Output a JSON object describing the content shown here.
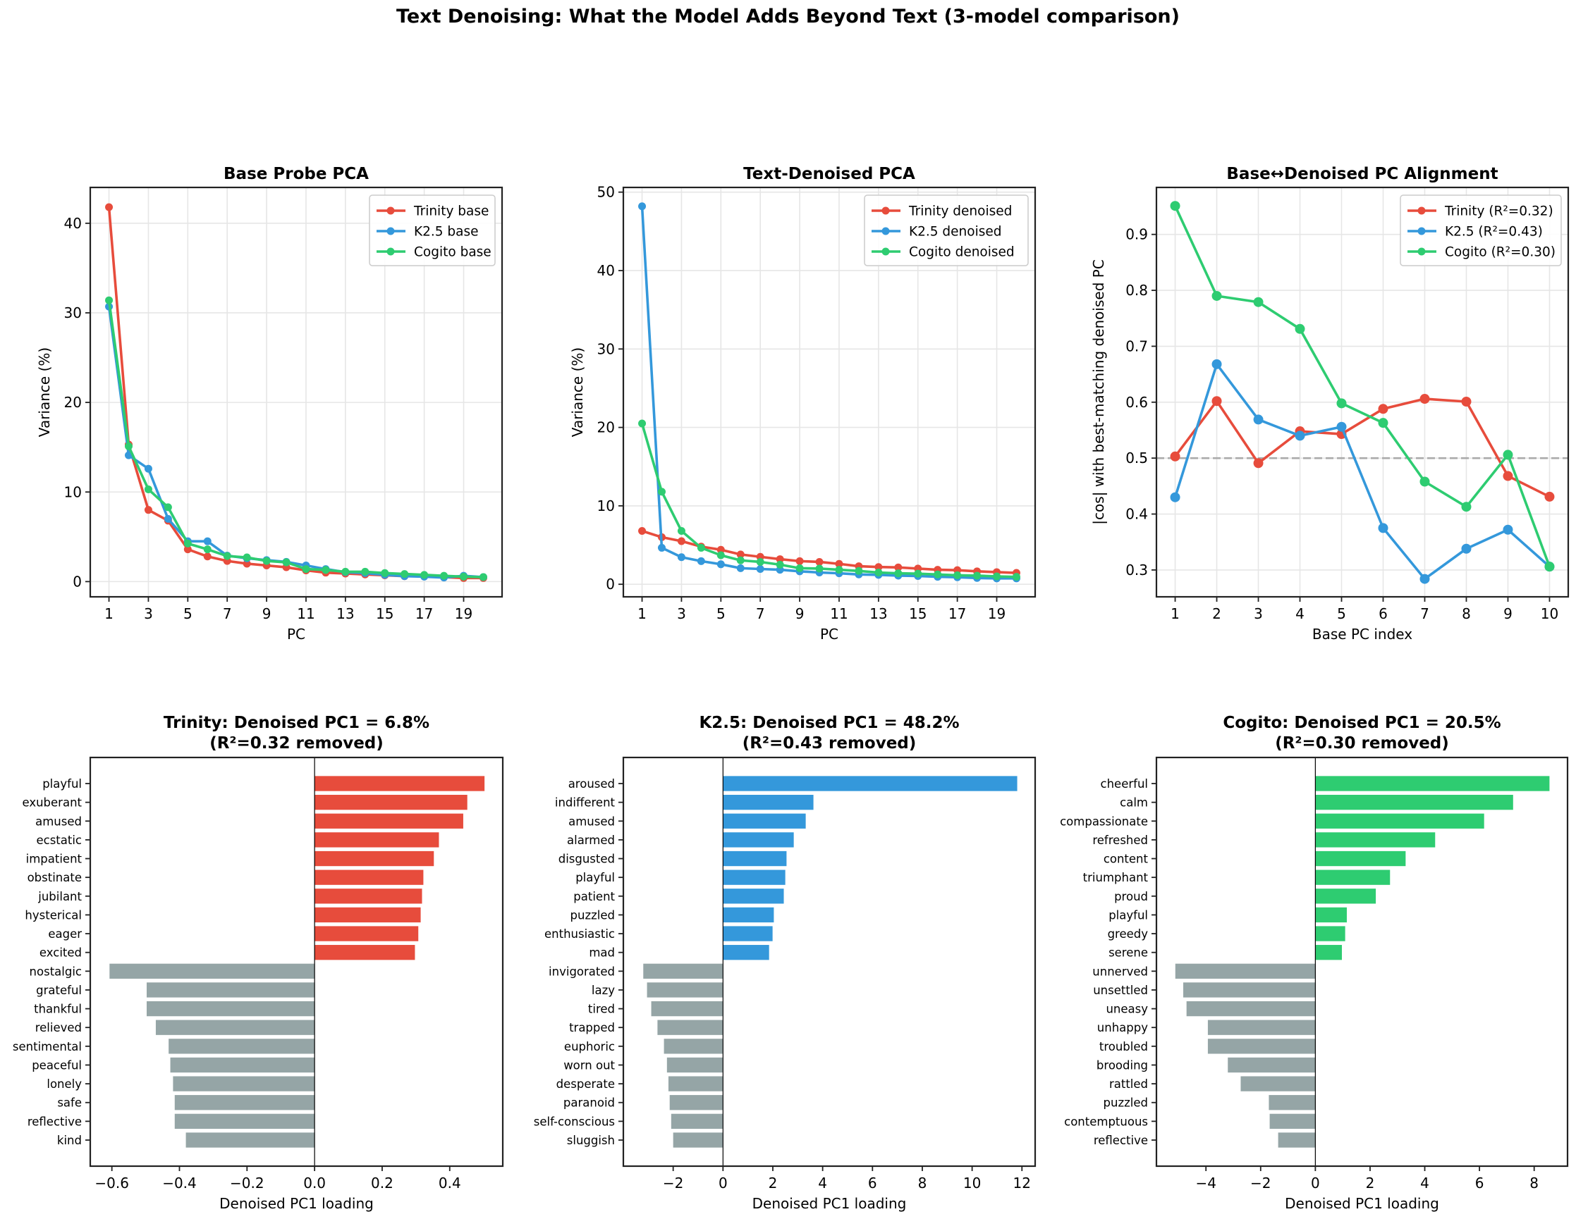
{
  "figure": {
    "title": "Text Denoising: What the Model Adds Beyond Text (3-model comparison)"
  },
  "colors": {
    "trinity": "#e74c3c",
    "k25": "#3498db",
    "cogito": "#2ecc71",
    "negative_bar": "#95a5a6",
    "grid": "#e6e6e6",
    "reference_line": "#aaaaaa"
  },
  "chart_data": [
    {
      "id": "base-probe-pca",
      "type": "line",
      "title": "Base Probe PCA",
      "xlabel": "PC",
      "ylabel": "Variance (%)",
      "x": [
        1,
        2,
        3,
        4,
        5,
        6,
        7,
        8,
        9,
        10,
        11,
        12,
        13,
        14,
        15,
        16,
        17,
        18,
        19,
        20
      ],
      "xticks": [
        1,
        3,
        5,
        7,
        9,
        11,
        13,
        15,
        17,
        19
      ],
      "yticks": [
        0,
        10,
        20,
        30,
        40
      ],
      "xlim": [
        0.05,
        20.95
      ],
      "ylim": [
        -1.7,
        44.0
      ],
      "grid": true,
      "legend": "top-right",
      "series": [
        {
          "name": "Trinity base",
          "color_key": "trinity",
          "values": [
            41.8,
            15.3,
            8.0,
            6.8,
            3.6,
            2.8,
            2.3,
            2.0,
            1.8,
            1.6,
            1.25,
            1.0,
            0.9,
            0.8,
            0.7,
            0.6,
            0.6,
            0.5,
            0.4,
            0.4
          ]
        },
        {
          "name": "K2.5 base",
          "color_key": "k25",
          "values": [
            30.7,
            14.1,
            12.6,
            7.0,
            4.5,
            4.5,
            2.9,
            2.6,
            2.4,
            2.2,
            1.8,
            1.4,
            1.05,
            0.95,
            0.75,
            0.6,
            0.55,
            0.45,
            0.65,
            0.5
          ]
        },
        {
          "name": "Cogito base",
          "color_key": "cogito",
          "values": [
            31.4,
            15.1,
            10.3,
            8.3,
            4.25,
            3.6,
            2.85,
            2.7,
            2.3,
            2.15,
            1.4,
            1.3,
            1.1,
            1.1,
            0.95,
            0.85,
            0.75,
            0.65,
            0.55,
            0.5
          ]
        }
      ]
    },
    {
      "id": "text-denoised-pca",
      "type": "line",
      "title": "Text-Denoised PCA",
      "xlabel": "PC",
      "ylabel": "Variance (%)",
      "x": [
        1,
        2,
        3,
        4,
        5,
        6,
        7,
        8,
        9,
        10,
        11,
        12,
        13,
        14,
        15,
        16,
        17,
        18,
        19,
        20
      ],
      "xticks": [
        1,
        3,
        5,
        7,
        9,
        11,
        13,
        15,
        17,
        19
      ],
      "yticks": [
        0,
        10,
        20,
        30,
        40,
        50
      ],
      "xlim": [
        0.05,
        20.95
      ],
      "ylim": [
        -1.6,
        50.6
      ],
      "grid": true,
      "legend": "top-right",
      "series": [
        {
          "name": "Trinity denoised",
          "color_key": "trinity",
          "values": [
            6.8,
            6.0,
            5.5,
            4.8,
            4.4,
            3.8,
            3.5,
            3.2,
            2.95,
            2.85,
            2.6,
            2.3,
            2.2,
            2.15,
            2.0,
            1.85,
            1.8,
            1.65,
            1.55,
            1.45
          ]
        },
        {
          "name": "K2.5 denoised",
          "color_key": "k25",
          "values": [
            48.2,
            4.65,
            3.45,
            2.95,
            2.55,
            2.05,
            1.95,
            1.85,
            1.65,
            1.5,
            1.4,
            1.25,
            1.2,
            1.1,
            1.05,
            0.95,
            0.9,
            0.8,
            0.75,
            0.75
          ]
        },
        {
          "name": "Cogito denoised",
          "color_key": "cogito",
          "values": [
            20.5,
            11.8,
            6.8,
            4.65,
            3.7,
            3.05,
            2.85,
            2.5,
            2.05,
            2.0,
            1.85,
            1.7,
            1.5,
            1.4,
            1.35,
            1.25,
            1.15,
            1.1,
            1.0,
            0.95
          ]
        }
      ]
    },
    {
      "id": "pc-alignment",
      "type": "line",
      "title": "Base↔Denoised PC Alignment",
      "xlabel": "Base PC index",
      "ylabel": "|cos| with best-matching denoised PC",
      "x": [
        1,
        2,
        3,
        4,
        5,
        6,
        7,
        8,
        9,
        10
      ],
      "xticks": [
        1,
        2,
        3,
        4,
        5,
        6,
        7,
        8,
        9,
        10
      ],
      "yticks": [
        0.3,
        0.4,
        0.5,
        0.6,
        0.7,
        0.8,
        0.9
      ],
      "xlim": [
        0.55,
        10.45
      ],
      "ylim": [
        0.252,
        0.984
      ],
      "grid": true,
      "legend": "top-right",
      "reference_line": {
        "y": 0.5,
        "style": "dashed"
      },
      "series": [
        {
          "name": "Trinity (R²=0.32)",
          "color_key": "trinity",
          "values": [
            0.503,
            0.602,
            0.491,
            0.548,
            0.543,
            0.588,
            0.606,
            0.601,
            0.468,
            0.431
          ]
        },
        {
          "name": "K2.5 (R²=0.43)",
          "color_key": "k25",
          "values": [
            0.43,
            0.668,
            0.569,
            0.54,
            0.556,
            0.375,
            0.284,
            0.338,
            0.372,
            0.306
          ]
        },
        {
          "name": "Cogito (R²=0.30)",
          "color_key": "cogito",
          "values": [
            0.951,
            0.79,
            0.779,
            0.731,
            0.598,
            0.563,
            0.458,
            0.413,
            0.506,
            0.306
          ]
        }
      ]
    },
    {
      "id": "trinity-loadings",
      "type": "bar",
      "orientation": "horizontal",
      "title": "Trinity: Denoised PC1 = 6.8%",
      "subtitle": "(R²=0.32 removed)",
      "xlabel": "Denoised PC1 loading",
      "color_key": "trinity",
      "xticks": [
        -0.6,
        -0.4,
        -0.2,
        0.0,
        0.2,
        0.4
      ],
      "xtick_labels": [
        "−0.6",
        "−0.4",
        "−0.2",
        "0.0",
        "0.2",
        "0.4"
      ],
      "xlim": [
        -0.664,
        0.557
      ],
      "categories": [
        "playful",
        "exuberant",
        "amused",
        "ecstatic",
        "impatient",
        "obstinate",
        "jubilant",
        "hysterical",
        "eager",
        "excited",
        "nostalgic",
        "grateful",
        "thankful",
        "relieved",
        "sentimental",
        "peaceful",
        "lonely",
        "safe",
        "reflective",
        "kind"
      ],
      "values": [
        0.503,
        0.452,
        0.44,
        0.368,
        0.353,
        0.322,
        0.318,
        0.314,
        0.307,
        0.297,
        -0.607,
        -0.497,
        -0.497,
        -0.47,
        -0.432,
        -0.427,
        -0.419,
        -0.414,
        -0.414,
        -0.381
      ]
    },
    {
      "id": "k25-loadings",
      "type": "bar",
      "orientation": "horizontal",
      "title": "K2.5: Denoised PC1 = 48.2%",
      "subtitle": "(R²=0.43 removed)",
      "xlabel": "Denoised PC1 loading",
      "color_key": "k25",
      "xticks": [
        -2,
        0,
        2,
        4,
        6,
        8,
        10,
        12
      ],
      "xtick_labels": [
        "−2",
        "0",
        "2",
        "4",
        "6",
        "8",
        "10",
        "12"
      ],
      "xlim": [
        -4.0,
        12.53
      ],
      "categories": [
        "aroused",
        "indifferent",
        "amused",
        "alarmed",
        "disgusted",
        "playful",
        "patient",
        "puzzled",
        "enthusiastic",
        "mad",
        "invigorated",
        "lazy",
        "tired",
        "trapped",
        "euphoric",
        "worn out",
        "desperate",
        "paranoid",
        "self-conscious",
        "sluggish"
      ],
      "values": [
        11.81,
        3.63,
        3.32,
        2.84,
        2.55,
        2.5,
        2.44,
        2.04,
        1.99,
        1.85,
        -3.2,
        -3.05,
        -2.88,
        -2.63,
        -2.37,
        -2.25,
        -2.19,
        -2.14,
        -2.08,
        -2.0
      ]
    },
    {
      "id": "cogito-loadings",
      "type": "bar",
      "orientation": "horizontal",
      "title": "Cogito: Denoised PC1 = 20.5%",
      "subtitle": "(R²=0.30 removed)",
      "xlabel": "Denoised PC1 loading",
      "color_key": "cogito",
      "xticks": [
        -4,
        -2,
        0,
        2,
        4,
        6,
        8
      ],
      "xtick_labels": [
        "−4",
        "−2",
        "0",
        "2",
        "4",
        "6",
        "8"
      ],
      "xlim": [
        -5.81,
        9.22
      ],
      "categories": [
        "cheerful",
        "calm",
        "compassionate",
        "refreshed",
        "content",
        "triumphant",
        "proud",
        "playful",
        "greedy",
        "serene",
        "unnerved",
        "unsettled",
        "uneasy",
        "unhappy",
        "troubled",
        "brooding",
        "rattled",
        "puzzled",
        "contemptuous",
        "reflective"
      ],
      "values": [
        8.56,
        7.23,
        6.17,
        4.38,
        3.3,
        2.73,
        2.21,
        1.15,
        1.09,
        0.97,
        -5.12,
        -4.83,
        -4.71,
        -3.93,
        -3.93,
        -3.2,
        -2.73,
        -1.7,
        -1.67,
        -1.36
      ]
    }
  ]
}
